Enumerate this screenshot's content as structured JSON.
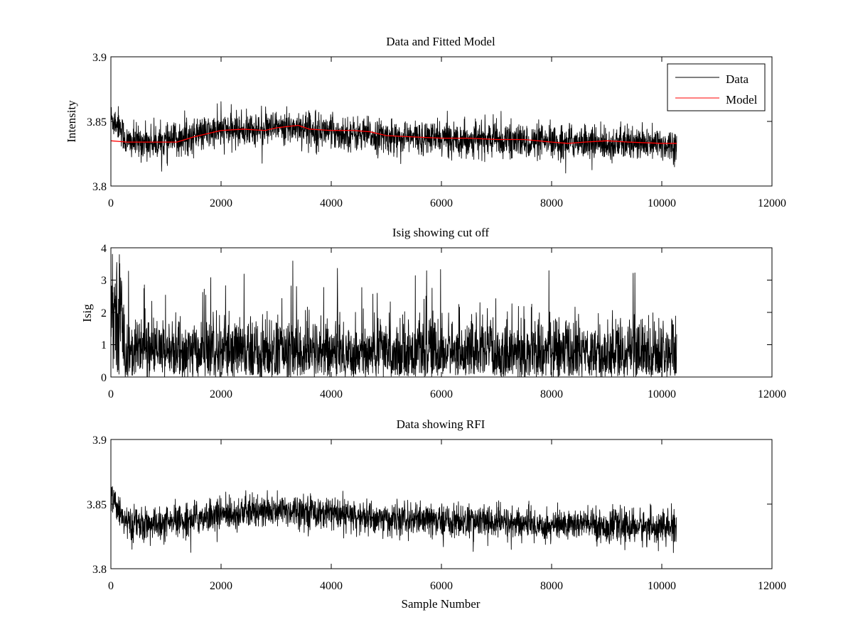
{
  "chart_data": [
    {
      "type": "line",
      "title": "Data and Fitted Model",
      "xlabel": "",
      "ylabel": "Intensity",
      "xlim": [
        0,
        12000
      ],
      "ylim": [
        3.8,
        3.9
      ],
      "xticks": [
        "0",
        "2000",
        "4000",
        "6000",
        "8000",
        "10000",
        "12000"
      ],
      "yticks": [
        "3.8",
        "3.85",
        "3.9"
      ],
      "grid": false,
      "legend": {
        "placement": "top-right",
        "entries": [
          "Data",
          "Model"
        ]
      },
      "series": [
        {
          "name": "Data",
          "color": "#000000",
          "kind": "noisy",
          "x_range": [
            0,
            10270
          ],
          "baseline": {
            "x": [
              0,
              150,
              280,
              600,
              1000,
              1300,
              2000,
              3000,
              3400,
              4000,
              5000,
              6000,
              7000,
              8000,
              8500,
              9000,
              10270
            ],
            "y": [
              3.852,
              3.848,
              3.834,
              3.834,
              3.834,
              3.837,
              3.843,
              3.844,
              3.846,
              3.842,
              3.838,
              3.837,
              3.836,
              3.833,
              3.835,
              3.833,
              3.832
            ]
          },
          "y_extremes": [
            3.81,
            3.867
          ]
        },
        {
          "name": "Model",
          "color": "#ff0000",
          "x": [
            0,
            300,
            600,
            900,
            1200,
            1500,
            1800,
            2000,
            2400,
            2800,
            3000,
            3200,
            3400,
            3600,
            4000,
            4400,
            4700,
            5000,
            5500,
            6000,
            6500,
            7000,
            7500,
            8000,
            8300,
            8600,
            9000,
            9400,
            10000,
            10270
          ],
          "y": [
            3.835,
            3.834,
            3.834,
            3.834,
            3.834,
            3.838,
            3.841,
            3.843,
            3.844,
            3.843,
            3.845,
            3.846,
            3.847,
            3.844,
            3.843,
            3.843,
            3.842,
            3.839,
            3.838,
            3.837,
            3.837,
            3.836,
            3.836,
            3.834,
            3.833,
            3.834,
            3.835,
            3.834,
            3.833,
            3.833
          ]
        }
      ]
    },
    {
      "type": "line",
      "title": "Isig showing cut off",
      "xlabel": "",
      "ylabel": "Isig",
      "xlim": [
        0,
        12000
      ],
      "ylim": [
        0,
        4
      ],
      "xticks": [
        "0",
        "2000",
        "4000",
        "6000",
        "8000",
        "10000",
        "12000"
      ],
      "yticks": [
        "0",
        "1",
        "2",
        "3",
        "4"
      ],
      "grid": false,
      "series": [
        {
          "color": "#000000",
          "kind": "noisy",
          "x_range": [
            0,
            10270
          ],
          "baseline": {
            "x": [
              0,
              200,
              250,
              10270
            ],
            "y": [
              2.2,
              1.8,
              0.75,
              0.75
            ]
          },
          "y_extremes": [
            0,
            3.8
          ]
        }
      ]
    },
    {
      "type": "line",
      "title": "Data showing RFI",
      "xlabel": "Sample Number",
      "ylabel": "",
      "xlim": [
        0,
        12000
      ],
      "ylim": [
        3.8,
        3.9
      ],
      "xticks": [
        "0",
        "2000",
        "4000",
        "6000",
        "8000",
        "10000",
        "12000"
      ],
      "yticks": [
        "3.8",
        "3.85",
        "3.9"
      ],
      "grid": false,
      "series": [
        {
          "color": "#000000",
          "kind": "noisy",
          "x_range": [
            0,
            10270
          ],
          "baseline": {
            "x": [
              0,
              150,
              280,
              600,
              1000,
              1300,
              2000,
              3000,
              3400,
              4000,
              5000,
              6000,
              7000,
              8000,
              8500,
              9000,
              10270
            ],
            "y": [
              3.852,
              3.848,
              3.834,
              3.834,
              3.834,
              3.837,
              3.843,
              3.844,
              3.846,
              3.842,
              3.838,
              3.837,
              3.836,
              3.833,
              3.835,
              3.833,
              3.832
            ]
          },
          "y_extremes": [
            3.81,
            3.867
          ]
        }
      ]
    }
  ]
}
